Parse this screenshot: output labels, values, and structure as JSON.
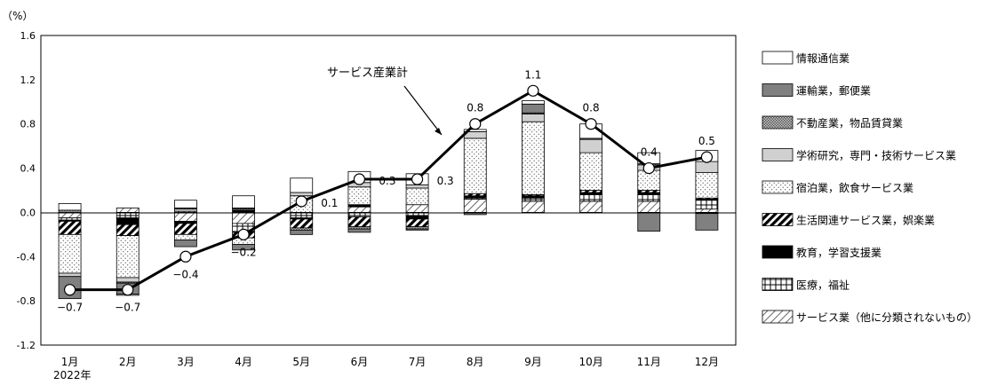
{
  "chart_data": {
    "type": "bar",
    "subtype": "stacked contribution bar with total line",
    "y_unit_label": "（%）",
    "ylim": [
      -1.2,
      1.6
    ],
    "yticks": [
      "1.6",
      "1.2",
      "0.8",
      "0.4",
      "0.0",
      "-0.4",
      "-0.8",
      "-1.2"
    ],
    "ytick_values": [
      1.6,
      1.2,
      0.8,
      0.4,
      0.0,
      -0.4,
      -0.8,
      -1.2
    ],
    "categories": [
      "1月",
      "2月",
      "3月",
      "4月",
      "5月",
      "6月",
      "7月",
      "8月",
      "9月",
      "10月",
      "11月",
      "12月"
    ],
    "x_sublabel": "2022年",
    "total_series": {
      "name": "サービス産業計",
      "values": [
        -0.7,
        -0.7,
        -0.4,
        -0.2,
        0.1,
        0.3,
        0.3,
        0.8,
        1.1,
        0.8,
        0.4,
        0.5
      ],
      "labels": [
        "−0.7",
        "−0.7",
        "−0.4",
        "−0.2",
        "0.1",
        "0.3",
        "0.3",
        "0.8",
        "1.1",
        "0.8",
        "0.4",
        "0.5"
      ]
    },
    "series": [
      {
        "name": "情報通信業",
        "pattern": "white",
        "values": [
          0.06,
          -0.01,
          0.07,
          0.11,
          0.13,
          0.1,
          0.1,
          0.02,
          0.03,
          0.13,
          0.1,
          0.1
        ]
      },
      {
        "name": "運輸業，郵便業",
        "pattern": "gray",
        "values": [
          -0.2,
          -0.1,
          -0.06,
          -0.05,
          -0.04,
          -0.03,
          -0.01,
          -0.02,
          0.08,
          0.01,
          -0.17,
          -0.15
        ]
      },
      {
        "name": "不動産業，物品賃貸業",
        "pattern": "crosshatch",
        "values": [
          0.02,
          -0.01,
          0.01,
          0.01,
          -0.02,
          -0.02,
          -0.02,
          0.0,
          0.01,
          0.0,
          0.01,
          -0.01
        ]
      },
      {
        "name": "学術研究，専門・技術サービス業",
        "pattern": "lightgray",
        "values": [
          -0.03,
          -0.04,
          0.02,
          0.01,
          0.03,
          0.04,
          0.03,
          0.06,
          0.07,
          0.12,
          0.05,
          0.1
        ]
      },
      {
        "name": "宿泊業，飲食サービス業",
        "pattern": "dots",
        "values": [
          -0.35,
          -0.38,
          -0.05,
          -0.06,
          0.15,
          0.16,
          0.15,
          0.5,
          0.66,
          0.34,
          0.18,
          0.23
        ]
      },
      {
        "name": "生活関連サービス業，娯楽業",
        "pattern": "diagonal-dense",
        "values": [
          -0.12,
          -0.1,
          -0.1,
          -0.05,
          -0.08,
          -0.09,
          -0.07,
          0.02,
          0.01,
          0.02,
          0.02,
          0.01
        ]
      },
      {
        "name": "教育，学習支援業",
        "pattern": "black",
        "values": [
          -0.01,
          -0.06,
          -0.02,
          0.02,
          -0.01,
          0.02,
          -0.03,
          0.02,
          0.02,
          0.02,
          0.02,
          0.01
        ]
      },
      {
        "name": "医療，福祉",
        "pattern": "grid",
        "values": [
          -0.02,
          -0.05,
          0.01,
          -0.08,
          -0.05,
          -0.04,
          -0.03,
          0.01,
          0.03,
          0.06,
          0.06,
          0.08
        ]
      },
      {
        "name": "サービス業（他に分類されないもの）",
        "pattern": "diagonal-sparse",
        "values": [
          -0.05,
          0.04,
          -0.08,
          -0.1,
          0.0,
          0.05,
          0.07,
          0.12,
          0.1,
          0.1,
          0.1,
          0.03
        ]
      }
    ],
    "annotation": "サービス産業計",
    "legend_position": "right",
    "grid": false
  }
}
